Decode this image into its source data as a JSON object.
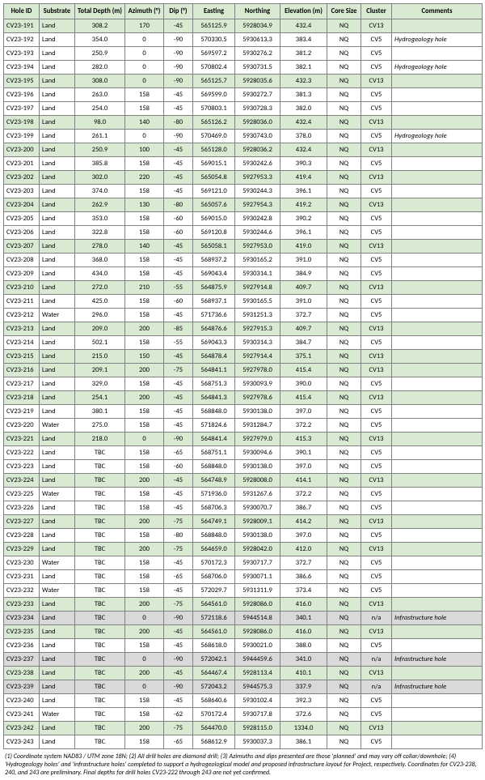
{
  "headers": [
    "Hole ID",
    "Substrate",
    "Total Depth (m)",
    "Azimuth (°)",
    "Dip (°)",
    "Easting",
    "Northing",
    "Elevation (m)",
    "Core Size",
    "Cluster",
    "Comments"
  ],
  "rows": [
    {
      "cls": "green",
      "hole": "CV23-191",
      "sub": "Land",
      "depth": "308.2",
      "az": "170",
      "dip": "-45",
      "east": "565125.9",
      "north": "5928034.9",
      "elev": "432.4",
      "core": "NQ",
      "clust": "CV13",
      "comm": ""
    },
    {
      "cls": "",
      "hole": "CV23-192",
      "sub": "Land",
      "depth": "354.0",
      "az": "0",
      "dip": "-90",
      "east": "570330.5",
      "north": "5930613.3",
      "elev": "383.4",
      "core": "NQ",
      "clust": "CV5",
      "comm": "Hydrogeology hole"
    },
    {
      "cls": "",
      "hole": "CV23-193",
      "sub": "Land",
      "depth": "250.9",
      "az": "0",
      "dip": "-90",
      "east": "569597.2",
      "north": "5930276.2",
      "elev": "381.2",
      "core": "NQ",
      "clust": "CV5",
      "comm": ""
    },
    {
      "cls": "",
      "hole": "CV23-194",
      "sub": "Land",
      "depth": "282.0",
      "az": "0",
      "dip": "-90",
      "east": "570802.4",
      "north": "5930731.5",
      "elev": "382.1",
      "core": "NQ",
      "clust": "CV5",
      "comm": "Hydrogeology hole"
    },
    {
      "cls": "green",
      "hole": "CV23-195",
      "sub": "Land",
      "depth": "308.0",
      "az": "0",
      "dip": "-90",
      "east": "565125.7",
      "north": "5928035.6",
      "elev": "432.3",
      "core": "NQ",
      "clust": "CV13",
      "comm": ""
    },
    {
      "cls": "",
      "hole": "CV23-196",
      "sub": "Land",
      "depth": "263.0",
      "az": "158",
      "dip": "-45",
      "east": "569599.0",
      "north": "5930272.7",
      "elev": "381.3",
      "core": "NQ",
      "clust": "CV5",
      "comm": ""
    },
    {
      "cls": "",
      "hole": "CV23-197",
      "sub": "Land",
      "depth": "254.0",
      "az": "158",
      "dip": "-45",
      "east": "570803.1",
      "north": "5930728.3",
      "elev": "382.0",
      "core": "NQ",
      "clust": "CV5",
      "comm": ""
    },
    {
      "cls": "green",
      "hole": "CV23-198",
      "sub": "Land",
      "depth": "98.0",
      "az": "140",
      "dip": "-80",
      "east": "565126.2",
      "north": "5928036.0",
      "elev": "432.4",
      "core": "NQ",
      "clust": "CV13",
      "comm": ""
    },
    {
      "cls": "",
      "hole": "CV23-199",
      "sub": "Land",
      "depth": "261.1",
      "az": "0",
      "dip": "-90",
      "east": "570469.0",
      "north": "5930743.0",
      "elev": "378.0",
      "core": "NQ",
      "clust": "CV5",
      "comm": "Hydrogeology hole"
    },
    {
      "cls": "green",
      "hole": "CV23-200",
      "sub": "Land",
      "depth": "250.9",
      "az": "100",
      "dip": "-45",
      "east": "565128.0",
      "north": "5928036.2",
      "elev": "432.4",
      "core": "NQ",
      "clust": "CV13",
      "comm": ""
    },
    {
      "cls": "",
      "hole": "CV23-201",
      "sub": "Land",
      "depth": "385.8",
      "az": "158",
      "dip": "-45",
      "east": "569015.1",
      "north": "5930242.6",
      "elev": "390.3",
      "core": "NQ",
      "clust": "CV5",
      "comm": ""
    },
    {
      "cls": "green",
      "hole": "CV23-202",
      "sub": "Land",
      "depth": "302.0",
      "az": "220",
      "dip": "-45",
      "east": "565054.8",
      "north": "5927953.3",
      "elev": "419.4",
      "core": "NQ",
      "clust": "CV13",
      "comm": ""
    },
    {
      "cls": "",
      "hole": "CV23-203",
      "sub": "Land",
      "depth": "374.0",
      "az": "158",
      "dip": "-45",
      "east": "569121.0",
      "north": "5930244.3",
      "elev": "396.1",
      "core": "NQ",
      "clust": "CV5",
      "comm": ""
    },
    {
      "cls": "green",
      "hole": "CV23-204",
      "sub": "Land",
      "depth": "262.9",
      "az": "130",
      "dip": "-80",
      "east": "565057.6",
      "north": "5927954.3",
      "elev": "419.2",
      "core": "NQ",
      "clust": "CV13",
      "comm": ""
    },
    {
      "cls": "",
      "hole": "CV23-205",
      "sub": "Land",
      "depth": "353.0",
      "az": "158",
      "dip": "-60",
      "east": "569015.0",
      "north": "5930242.8",
      "elev": "390.2",
      "core": "NQ",
      "clust": "CV5",
      "comm": ""
    },
    {
      "cls": "",
      "hole": "CV23-206",
      "sub": "Land",
      "depth": "322.8",
      "az": "158",
      "dip": "-60",
      "east": "569120.8",
      "north": "5930244.6",
      "elev": "396.1",
      "core": "NQ",
      "clust": "CV5",
      "comm": ""
    },
    {
      "cls": "green",
      "hole": "CV23-207",
      "sub": "Land",
      "depth": "278.0",
      "az": "140",
      "dip": "-45",
      "east": "565058.1",
      "north": "5927953.0",
      "elev": "419.0",
      "core": "NQ",
      "clust": "CV13",
      "comm": ""
    },
    {
      "cls": "",
      "hole": "CV23-208",
      "sub": "Land",
      "depth": "368.0",
      "az": "158",
      "dip": "-45",
      "east": "568937.2",
      "north": "5930165.2",
      "elev": "391.0",
      "core": "NQ",
      "clust": "CV5",
      "comm": ""
    },
    {
      "cls": "",
      "hole": "CV23-209",
      "sub": "Land",
      "depth": "434.0",
      "az": "158",
      "dip": "-45",
      "east": "569043.4",
      "north": "5930314.1",
      "elev": "384.9",
      "core": "NQ",
      "clust": "CV5",
      "comm": ""
    },
    {
      "cls": "green",
      "hole": "CV23-210",
      "sub": "Land",
      "depth": "272.0",
      "az": "210",
      "dip": "-55",
      "east": "564875.9",
      "north": "5927914.8",
      "elev": "409.7",
      "core": "NQ",
      "clust": "CV13",
      "comm": ""
    },
    {
      "cls": "",
      "hole": "CV23-211",
      "sub": "Land",
      "depth": "425.0",
      "az": "158",
      "dip": "-60",
      "east": "568937.1",
      "north": "5930165.5",
      "elev": "391.0",
      "core": "NQ",
      "clust": "CV5",
      "comm": ""
    },
    {
      "cls": "",
      "hole": "CV23-212",
      "sub": "Water",
      "depth": "296.0",
      "az": "158",
      "dip": "-45",
      "east": "571736.6",
      "north": "5931251.3",
      "elev": "372.7",
      "core": "NQ",
      "clust": "CV5",
      "comm": ""
    },
    {
      "cls": "green",
      "hole": "CV23-213",
      "sub": "Land",
      "depth": "209.0",
      "az": "200",
      "dip": "-85",
      "east": "564876.6",
      "north": "5927915.3",
      "elev": "409.7",
      "core": "NQ",
      "clust": "CV13",
      "comm": ""
    },
    {
      "cls": "",
      "hole": "CV23-214",
      "sub": "Land",
      "depth": "502.1",
      "az": "158",
      "dip": "-55",
      "east": "569043.3",
      "north": "5930314.3",
      "elev": "384.7",
      "core": "NQ",
      "clust": "CV5",
      "comm": ""
    },
    {
      "cls": "green",
      "hole": "CV23-215",
      "sub": "Land",
      "depth": "215.0",
      "az": "150",
      "dip": "-45",
      "east": "564878.4",
      "north": "5927914.4",
      "elev": "375.1",
      "core": "NQ",
      "clust": "CV13",
      "comm": ""
    },
    {
      "cls": "green",
      "hole": "CV23-216",
      "sub": "Land",
      "depth": "209.1",
      "az": "200",
      "dip": "-75",
      "east": "564841.1",
      "north": "5927978.0",
      "elev": "415.4",
      "core": "NQ",
      "clust": "CV13",
      "comm": ""
    },
    {
      "cls": "",
      "hole": "CV23-217",
      "sub": "Land",
      "depth": "329.0",
      "az": "158",
      "dip": "-45",
      "east": "568751.3",
      "north": "5930093.9",
      "elev": "390.0",
      "core": "NQ",
      "clust": "CV5",
      "comm": ""
    },
    {
      "cls": "green",
      "hole": "CV23-218",
      "sub": "Land",
      "depth": "254.1",
      "az": "200",
      "dip": "-45",
      "east": "564841.3",
      "north": "5927978.6",
      "elev": "415.4",
      "core": "NQ",
      "clust": "CV13",
      "comm": ""
    },
    {
      "cls": "",
      "hole": "CV23-219",
      "sub": "Land",
      "depth": "380.1",
      "az": "158",
      "dip": "-45",
      "east": "568848.0",
      "north": "5930138.0",
      "elev": "397.0",
      "core": "NQ",
      "clust": "CV5",
      "comm": ""
    },
    {
      "cls": "",
      "hole": "CV23-220",
      "sub": "Water",
      "depth": "275.0",
      "az": "158",
      "dip": "-45",
      "east": "571824.6",
      "north": "5931284.7",
      "elev": "372.2",
      "core": "NQ",
      "clust": "CV5",
      "comm": ""
    },
    {
      "cls": "green",
      "hole": "CV23-221",
      "sub": "Land",
      "depth": "218.0",
      "az": "0",
      "dip": "-90",
      "east": "564841.4",
      "north": "5927979.0",
      "elev": "415.3",
      "core": "NQ",
      "clust": "CV13",
      "comm": ""
    },
    {
      "cls": "",
      "hole": "CV23-222",
      "sub": "Land",
      "depth": "TBC",
      "az": "158",
      "dip": "-65",
      "east": "568751.1",
      "north": "5930094.6",
      "elev": "390.1",
      "core": "NQ",
      "clust": "CV5",
      "comm": ""
    },
    {
      "cls": "",
      "hole": "CV23-223",
      "sub": "Land",
      "depth": "TBC",
      "az": "158",
      "dip": "-60",
      "east": "568848.0",
      "north": "5930138.0",
      "elev": "397.0",
      "core": "NQ",
      "clust": "CV5",
      "comm": ""
    },
    {
      "cls": "green",
      "hole": "CV23-224",
      "sub": "Land",
      "depth": "TBC",
      "az": "200",
      "dip": "-45",
      "east": "564748.9",
      "north": "5928008.0",
      "elev": "414.1",
      "core": "NQ",
      "clust": "CV13",
      "comm": ""
    },
    {
      "cls": "",
      "hole": "CV23-225",
      "sub": "Water",
      "depth": "TBC",
      "az": "158",
      "dip": "-45",
      "east": "571936.0",
      "north": "5931267.6",
      "elev": "372.2",
      "core": "NQ",
      "clust": "CV5",
      "comm": ""
    },
    {
      "cls": "",
      "hole": "CV23-226",
      "sub": "Land",
      "depth": "TBC",
      "az": "158",
      "dip": "-45",
      "east": "568706.3",
      "north": "5930070.7",
      "elev": "386.7",
      "core": "NQ",
      "clust": "CV5",
      "comm": ""
    },
    {
      "cls": "green",
      "hole": "CV23-227",
      "sub": "Land",
      "depth": "TBC",
      "az": "200",
      "dip": "-75",
      "east": "564749.1",
      "north": "5928009.1",
      "elev": "414.2",
      "core": "NQ",
      "clust": "CV13",
      "comm": ""
    },
    {
      "cls": "",
      "hole": "CV23-228",
      "sub": "Land",
      "depth": "TBC",
      "az": "158",
      "dip": "-80",
      "east": "568848.0",
      "north": "5930138.0",
      "elev": "397.0",
      "core": "NQ",
      "clust": "CV5",
      "comm": ""
    },
    {
      "cls": "green",
      "hole": "CV23-229",
      "sub": "Land",
      "depth": "TBC",
      "az": "200",
      "dip": "-75",
      "east": "564659.0",
      "north": "5928042.0",
      "elev": "412.0",
      "core": "NQ",
      "clust": "CV13",
      "comm": ""
    },
    {
      "cls": "",
      "hole": "CV23-230",
      "sub": "Water",
      "depth": "TBC",
      "az": "158",
      "dip": "-45",
      "east": "570172.3",
      "north": "5930717.7",
      "elev": "372.7",
      "core": "NQ",
      "clust": "CV5",
      "comm": ""
    },
    {
      "cls": "",
      "hole": "CV23-231",
      "sub": "Land",
      "depth": "TBC",
      "az": "158",
      "dip": "-65",
      "east": "568706.0",
      "north": "5930071.1",
      "elev": "386.6",
      "core": "NQ",
      "clust": "CV5",
      "comm": ""
    },
    {
      "cls": "",
      "hole": "CV23-232",
      "sub": "Water",
      "depth": "TBC",
      "az": "158",
      "dip": "-45",
      "east": "572029.7",
      "north": "5931311.9",
      "elev": "373.4",
      "core": "NQ",
      "clust": "CV5",
      "comm": ""
    },
    {
      "cls": "green",
      "hole": "CV23-233",
      "sub": "Land",
      "depth": "TBC",
      "az": "200",
      "dip": "-75",
      "east": "564561.0",
      "north": "5928086.0",
      "elev": "416.0",
      "core": "NQ",
      "clust": "CV13",
      "comm": ""
    },
    {
      "cls": "grey",
      "hole": "CV23-234",
      "sub": "Land",
      "depth": "TBC",
      "az": "0",
      "dip": "-90",
      "east": "572118.6",
      "north": "5944514.8",
      "elev": "340.1",
      "core": "NQ",
      "clust": "n/a",
      "comm": "Infrastructure hole"
    },
    {
      "cls": "green",
      "hole": "CV23-235",
      "sub": "Land",
      "depth": "TBC",
      "az": "200",
      "dip": "-45",
      "east": "564561.0",
      "north": "5928086.0",
      "elev": "416.0",
      "core": "NQ",
      "clust": "CV13",
      "comm": ""
    },
    {
      "cls": "",
      "hole": "CV23-236",
      "sub": "Land",
      "depth": "TBC",
      "az": "158",
      "dip": "-45",
      "east": "568618.0",
      "north": "5930021.0",
      "elev": "388.0",
      "core": "NQ",
      "clust": "CV5",
      "comm": ""
    },
    {
      "cls": "grey",
      "hole": "CV23-237",
      "sub": "Land",
      "depth": "TBC",
      "az": "0",
      "dip": "-90",
      "east": "572042.1",
      "north": "5944459.6",
      "elev": "341.0",
      "core": "NQ",
      "clust": "n/a",
      "comm": "Infrastructure hole"
    },
    {
      "cls": "green",
      "hole": "CV23-238",
      "sub": "Land",
      "depth": "TBC",
      "az": "200",
      "dip": "-45",
      "east": "564467.4",
      "north": "5928113.4",
      "elev": "410.1",
      "core": "NQ",
      "clust": "CV13",
      "comm": ""
    },
    {
      "cls": "grey",
      "hole": "CV23-239",
      "sub": "Land",
      "depth": "TBC",
      "az": "0",
      "dip": "-90",
      "east": "572043.2",
      "north": "5944575.3",
      "elev": "337.9",
      "core": "NQ",
      "clust": "n/a",
      "comm": "Infrastructure hole"
    },
    {
      "cls": "",
      "hole": "CV23-240",
      "sub": "Land",
      "depth": "TBC",
      "az": "158",
      "dip": "-45",
      "east": "568640.6",
      "north": "5930102.4",
      "elev": "392.3",
      "core": "NQ",
      "clust": "CV5",
      "comm": ""
    },
    {
      "cls": "",
      "hole": "CV23-241",
      "sub": "Water",
      "depth": "TBC",
      "az": "158",
      "dip": "-62",
      "east": "570172.4",
      "north": "5930717.8",
      "elev": "372.6",
      "core": "NQ",
      "clust": "CV5",
      "comm": ""
    },
    {
      "cls": "green",
      "hole": "CV23-242",
      "sub": "Land",
      "depth": "TBC",
      "az": "200",
      "dip": "-75",
      "east": "564470.0",
      "north": "5928115.0",
      "elev": "1334.0",
      "core": "NQ",
      "clust": "CV13",
      "comm": ""
    },
    {
      "cls": "",
      "hole": "CV23-243",
      "sub": "Land",
      "depth": "TBC",
      "az": "158",
      "dip": "-65",
      "east": "568612.9",
      "north": "5930037.3",
      "elev": "386.1",
      "core": "NQ",
      "clust": "CV5",
      "comm": ""
    }
  ],
  "footnote": "(1) Coordinate system NAD83 / UTM zone 18N; (2) All drill holes are diamond drill; (3) Azimuths and dips presented are those 'planned' and may vary off collar/downhole; (4) 'Hydrogeology holes' and 'infrastructure holes' completed to support a hydrogeological model and proposed infrastructure layout for Project, respectively. Coordinates for CV23-238, 240, and 243 are preliminary. Final depths for drill holes CV23-222 through 243 are not yet confirmed."
}
